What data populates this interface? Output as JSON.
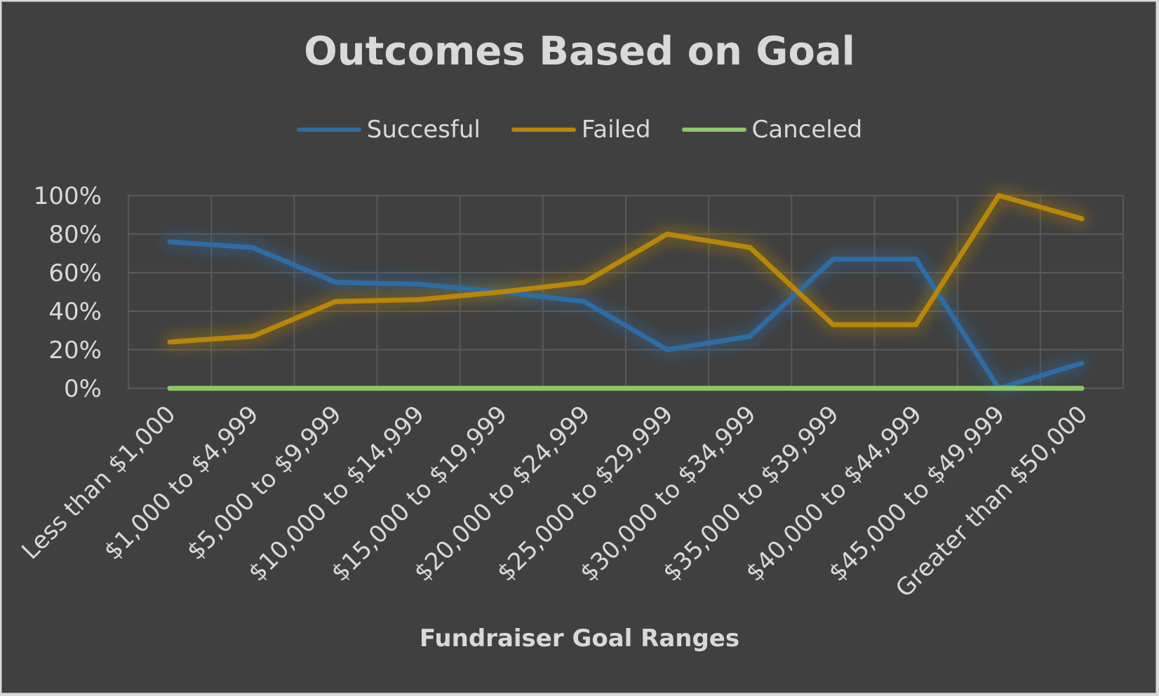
{
  "colors": {
    "background": "#404040",
    "gridline": "#595959",
    "text": "#d9d9d9"
  },
  "chart_data": {
    "type": "line",
    "title": "Outcomes Based on Goal",
    "xlabel": "Fundraiser Goal Ranges",
    "ylabel": "",
    "ylim": [
      0,
      1
    ],
    "yticks": [
      "0%",
      "20%",
      "40%",
      "60%",
      "80%",
      "100%"
    ],
    "grid": true,
    "legend_position": "top",
    "categories": [
      "Less than $1,000",
      "$1,000 to $4,999",
      "$5,000 to $9,999",
      "$10,000 to $14,999",
      "$15,000 to $19,999",
      "$20,000 to $24,999",
      "$25,000 to $29,999",
      "$30,000 to $34,999",
      "$35,000 to $39,999",
      "$40,000 to $44,999",
      "$45,000 to $49,999",
      "Greater than $50,000"
    ],
    "series": [
      {
        "name": "Succesful",
        "color": "#2e6ca4",
        "values": [
          0.76,
          0.73,
          0.55,
          0.54,
          0.5,
          0.45,
          0.2,
          0.27,
          0.67,
          0.67,
          0.0,
          0.13
        ]
      },
      {
        "name": "Failed",
        "color": "#b8860b",
        "values": [
          0.24,
          0.27,
          0.45,
          0.46,
          0.5,
          0.55,
          0.8,
          0.73,
          0.33,
          0.33,
          1.0,
          0.88
        ]
      },
      {
        "name": "Canceled",
        "color": "#8dc768",
        "values": [
          0,
          0,
          0,
          0,
          0,
          0,
          0,
          0,
          0,
          0,
          0,
          0
        ]
      }
    ]
  }
}
